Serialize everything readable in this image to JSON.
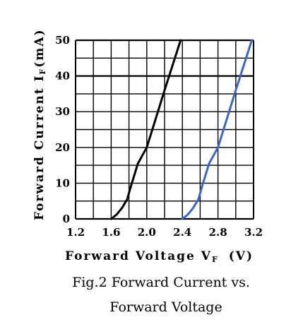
{
  "chart_data": {
    "type": "line",
    "xlabel_main": "Forward Voltage V",
    "xlabel_sub": "F",
    "xlabel_unit": "(V)",
    "ylabel_main": "Forward Current I",
    "ylabel_sub": "F",
    "ylabel_unit": "(mA)",
    "xlim": [
      1.2,
      3.2
    ],
    "ylim": [
      0,
      50
    ],
    "x_ticks": [
      "1.2",
      "1.6",
      "2.0",
      "2.4",
      "2.8",
      "3.2"
    ],
    "x_tick_values": [
      1.2,
      1.6,
      2.0,
      2.4,
      2.8,
      3.2
    ],
    "y_ticks": [
      "0",
      "10",
      "20",
      "30",
      "40",
      "50"
    ],
    "y_tick_values": [
      0,
      10,
      20,
      30,
      40,
      50
    ],
    "grid": true,
    "series": [
      {
        "color": "#000000",
        "points": [
          [
            1.6,
            0
          ],
          [
            1.66,
            1.2
          ],
          [
            1.72,
            3.0
          ],
          [
            1.78,
            5.5
          ],
          [
            1.82,
            9.0
          ],
          [
            1.9,
            15.5
          ],
          [
            2.0,
            20
          ],
          [
            2.2,
            36
          ],
          [
            2.38,
            50
          ]
        ]
      },
      {
        "color": "#3a66cc",
        "points": [
          [
            2.4,
            0
          ],
          [
            2.46,
            1.2
          ],
          [
            2.52,
            3.0
          ],
          [
            2.58,
            5.5
          ],
          [
            2.62,
            9.0
          ],
          [
            2.7,
            15.5
          ],
          [
            2.8,
            20
          ],
          [
            3.0,
            36
          ],
          [
            3.18,
            50
          ]
        ]
      }
    ]
  },
  "caption": {
    "line1": "Fig.2 Forward Current vs.",
    "line2": "Forward Voltage"
  }
}
